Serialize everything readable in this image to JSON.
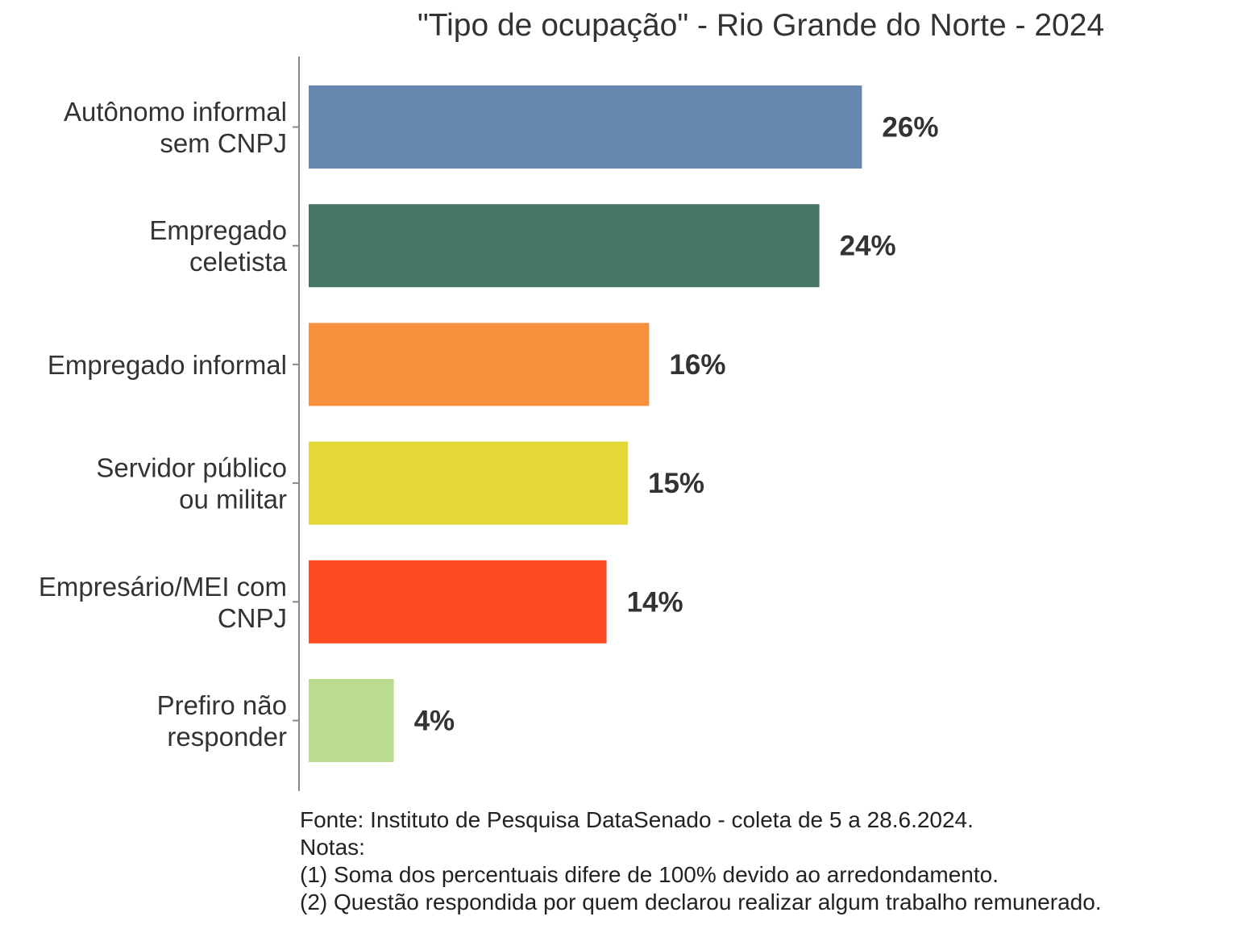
{
  "chart_data": {
    "type": "bar",
    "orientation": "horizontal",
    "title": "\"Tipo de ocupação\" - Rio Grande do Norte - 2024",
    "categories": [
      [
        "Autônomo informal",
        "sem CNPJ"
      ],
      [
        "Empregado",
        "celetista"
      ],
      [
        "Empregado informal"
      ],
      [
        "Servidor público",
        "ou militar"
      ],
      [
        "Empresário/MEI com",
        "CNPJ"
      ],
      [
        "Prefiro não",
        "responder"
      ]
    ],
    "values": [
      26,
      24,
      16,
      15,
      14,
      4
    ],
    "value_labels": [
      "26%",
      "24%",
      "16%",
      "15%",
      "14%",
      "4%"
    ],
    "colors": [
      "#6688B0",
      "#467564",
      "#F8913D",
      "#E4D836",
      "#FF4B21",
      "#BADC8F"
    ],
    "xlim": [
      0,
      40
    ],
    "grid": false,
    "legend": "none"
  },
  "notes": [
    "Fonte: Instituto de Pesquisa DataSenado - coleta de 5 a 28.6.2024.",
    "Notas:",
    "(1) Soma dos percentuais difere de 100% devido ao arredondamento.",
    "(2) Questão respondida por quem declarou realizar algum trabalho remunerado."
  ]
}
